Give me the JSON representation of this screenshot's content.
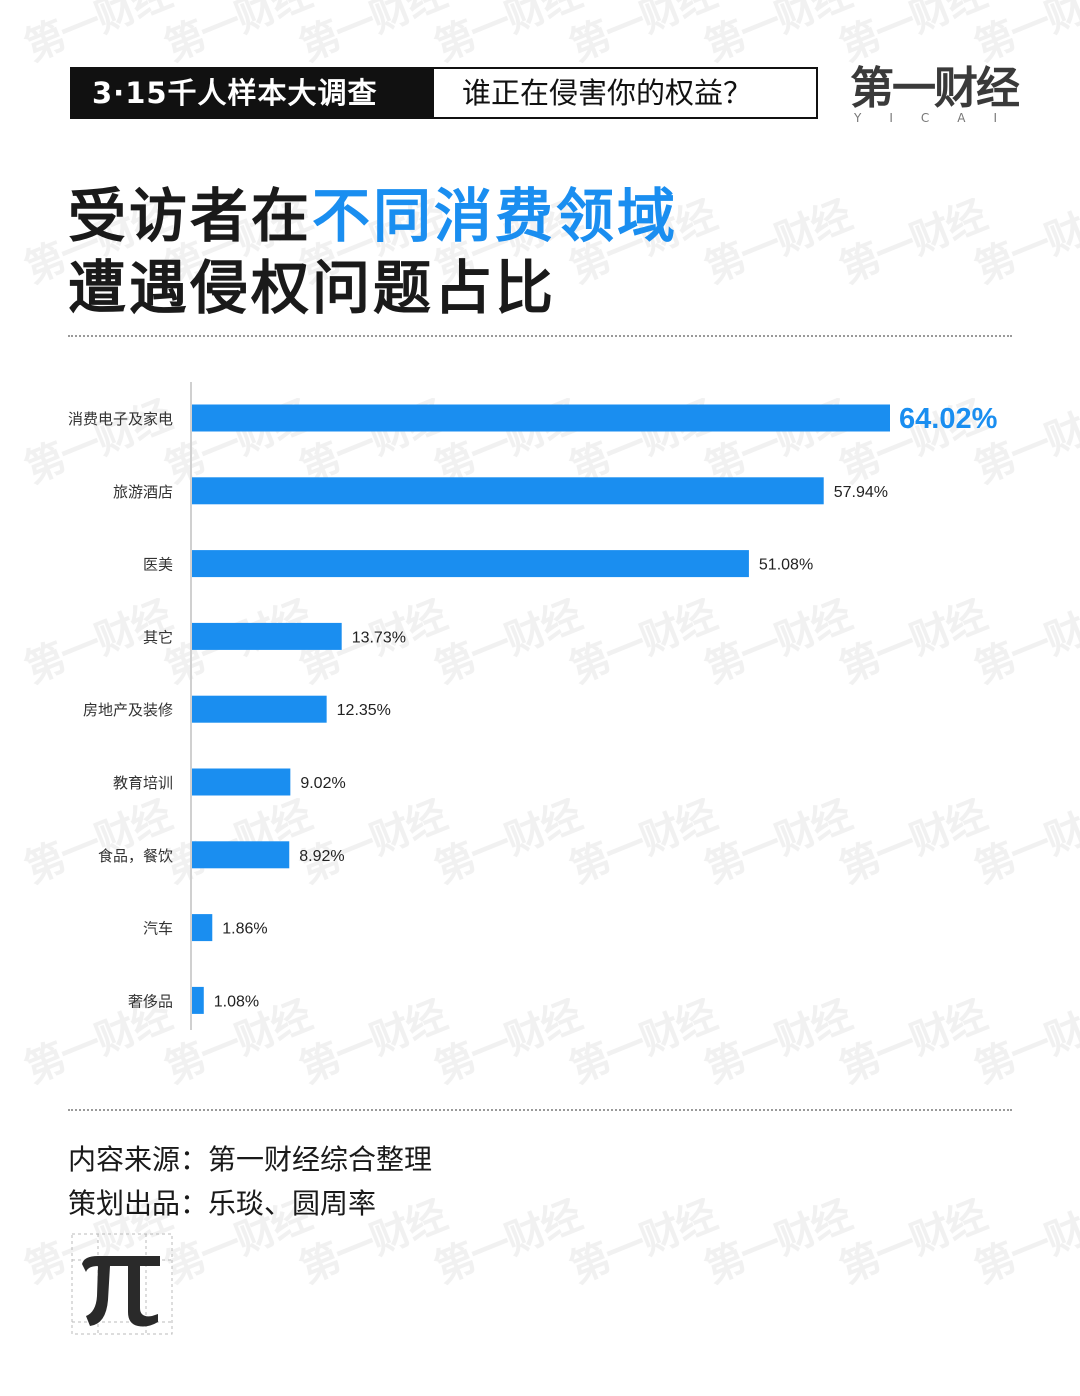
{
  "banner": {
    "left_text": "3·15千人样本大调查",
    "right_text": "谁正在侵害你的权益？"
  },
  "logo": {
    "cn": "第一财经",
    "en": "YICAI"
  },
  "title": {
    "line1_pre": "受访者在",
    "line1_highlight": "不同消费领域",
    "line2": "遭遇侵权问题占比"
  },
  "chart_data": {
    "type": "bar",
    "orientation": "horizontal",
    "categories": [
      "消费电子及家电",
      "旅游酒店",
      "医美",
      "其它",
      "房地产及装修",
      "教育培训",
      "食品，餐饮",
      "汽车",
      "奢侈品"
    ],
    "values": [
      64.02,
      57.94,
      51.08,
      13.73,
      12.35,
      9.02,
      8.92,
      1.86,
      1.08
    ],
    "value_labels": [
      "64.02%",
      "57.94%",
      "51.08%",
      "13.73%",
      "12.35%",
      "9.02%",
      "8.92%",
      "1.86%",
      "1.08%"
    ],
    "unit": "%",
    "bar_color": "#1a8ef0",
    "highlight_color": "#1a8ef0",
    "xlim": [
      0,
      64.02
    ],
    "grid": false
  },
  "footer": {
    "source": "内容来源：第一财经综合整理",
    "credit": "策划出品：乐琰、圆周率"
  },
  "watermark_text": "第一财经"
}
